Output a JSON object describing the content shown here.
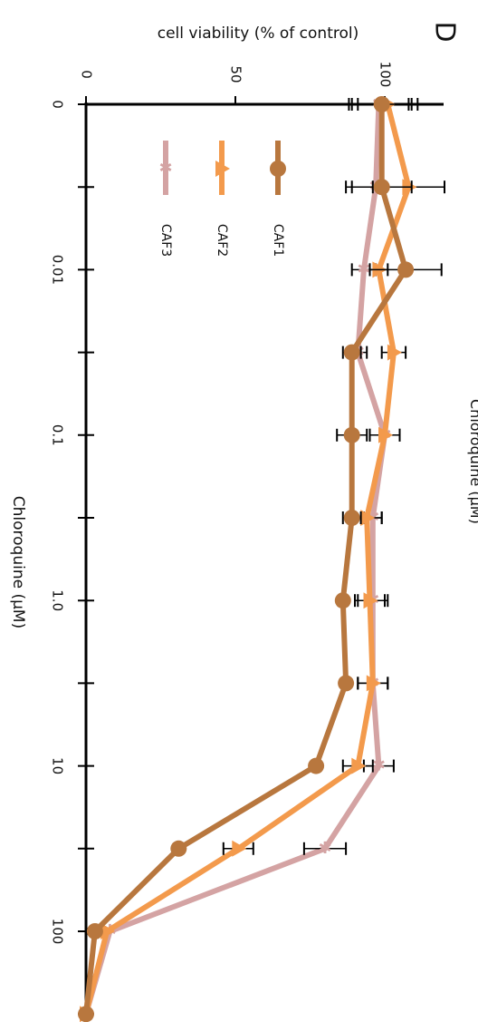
{
  "panel_label": "D",
  "clipped_text": "Chloroquine (µM)",
  "chart_data": {
    "type": "line",
    "orientation": "rotated 90° clockwise (x axis runs top to bottom, y axis runs right to left)",
    "x_scale": "log",
    "xlabel": "Chloroquine (µM)",
    "ylabel": "cell viability (% of control)",
    "x_ticks": [
      "0",
      "0.01",
      "0.1",
      "1.0",
      "10",
      "100"
    ],
    "y_ticks": [
      "0",
      "50",
      "100"
    ],
    "ylim": [
      0,
      115
    ],
    "x": [
      "0",
      "0.003",
      "0.01",
      "0.03",
      "0.1",
      "0.3",
      "1.0",
      "3",
      "10",
      "30",
      "100",
      "300"
    ],
    "legend_position": "left, near top",
    "series": [
      {
        "name": "CAF1",
        "color": "#b8773e",
        "marker": "circle",
        "values": [
          99,
          99,
          107,
          89,
          89,
          89,
          86,
          87,
          77,
          31,
          3,
          0
        ],
        "errors": [
          10,
          10,
          12,
          3,
          5,
          3,
          0,
          0,
          0,
          0,
          0,
          0
        ]
      },
      {
        "name": "CAF2",
        "color": "#f39a4c",
        "marker": "triangle",
        "values": [
          101,
          108,
          98,
          103,
          100,
          94,
          95,
          96,
          91,
          51,
          7,
          0
        ],
        "errors": [
          10,
          12,
          3,
          4,
          5,
          5,
          5,
          5,
          5,
          5,
          0,
          0
        ]
      },
      {
        "name": "CAF3",
        "color": "#d4a3a3",
        "marker": "star",
        "values": [
          98,
          97,
          93,
          91,
          100,
          96,
          96,
          96,
          98,
          80,
          8,
          0
        ],
        "errors": [
          10,
          10,
          4,
          3,
          5,
          3,
          5,
          5,
          5,
          7,
          0,
          0
        ]
      }
    ]
  }
}
